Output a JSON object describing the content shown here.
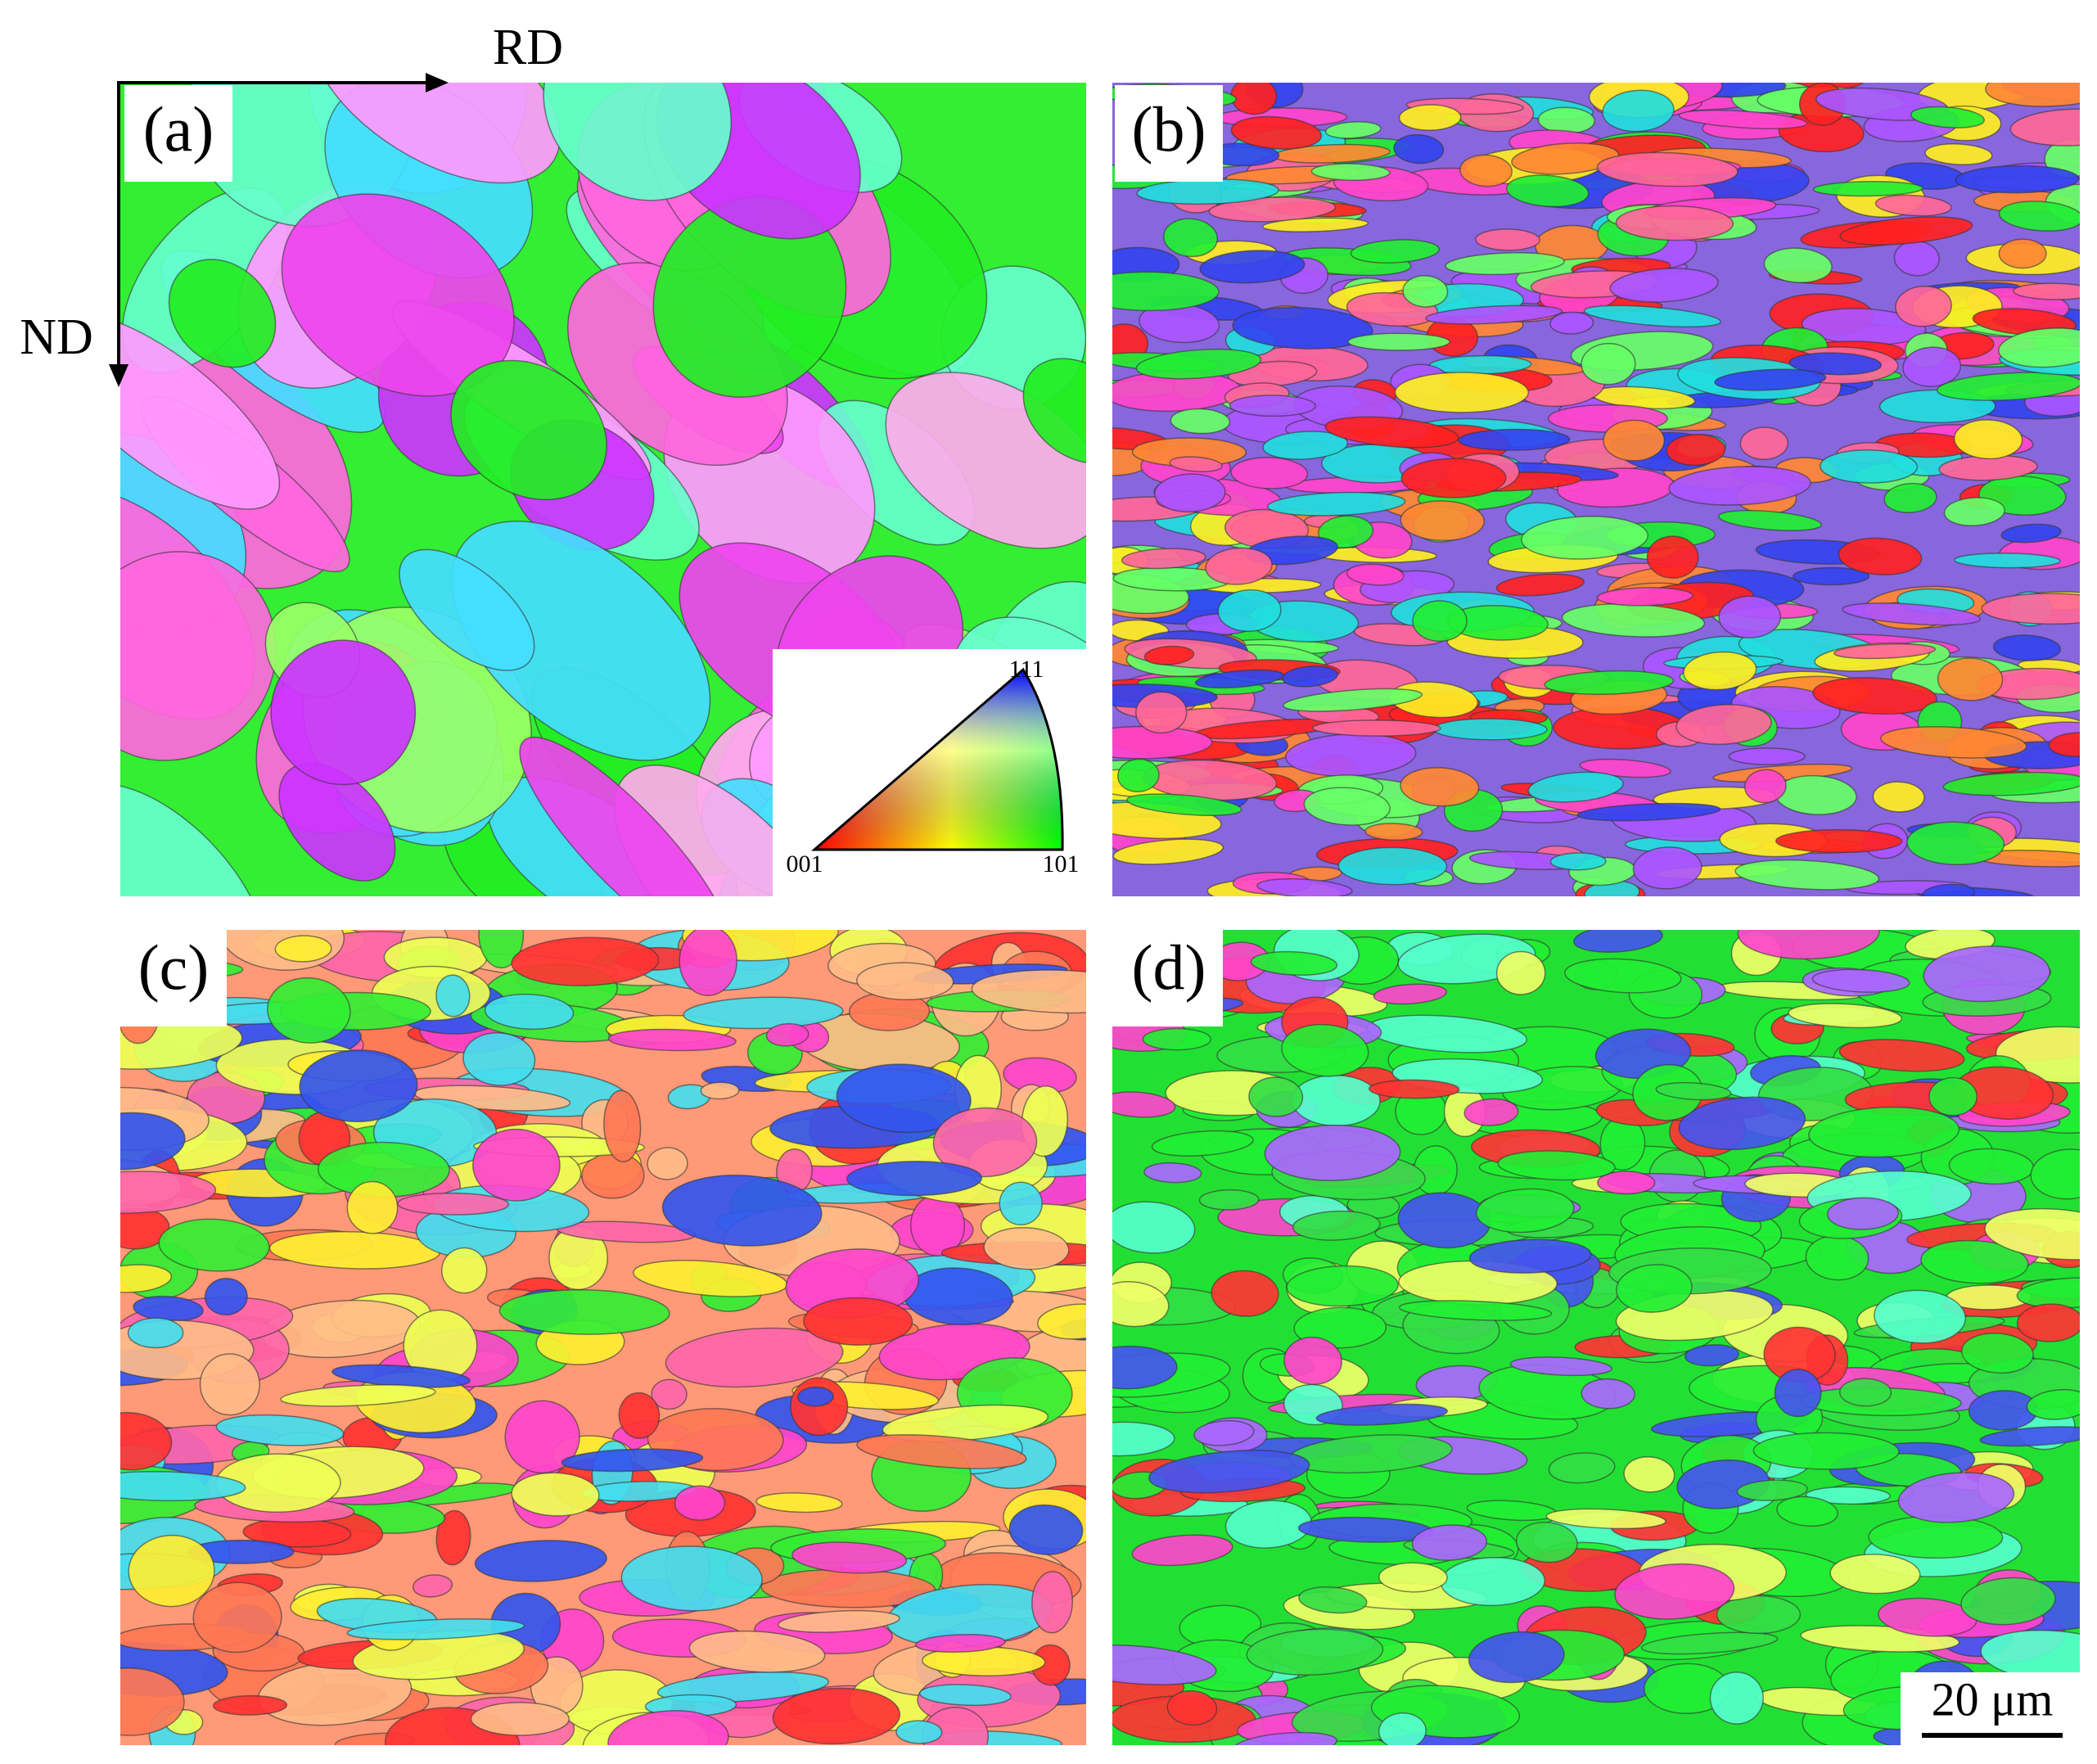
{
  "figure": {
    "axes": {
      "horizontal": "RD",
      "vertical": "ND"
    },
    "panels": [
      {
        "label": "(a)"
      },
      {
        "label": "(b)"
      },
      {
        "label": "(c)"
      },
      {
        "label": "(d)"
      }
    ],
    "ipf_legend": {
      "corners": [
        "001",
        "101",
        "111"
      ]
    },
    "scale_bar": "20 μm"
  }
}
